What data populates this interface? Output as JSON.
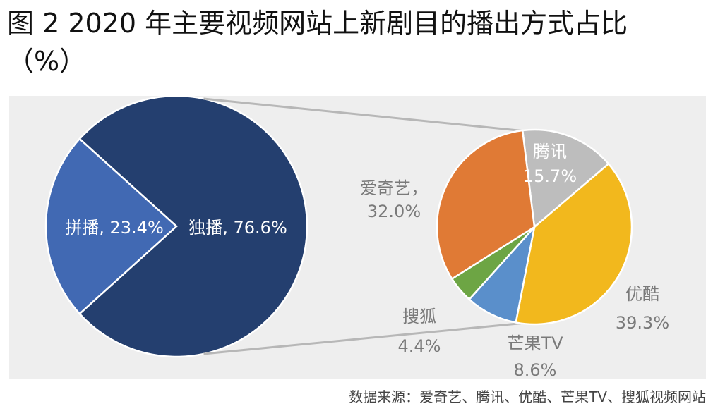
{
  "title": {
    "line1": "图 2 2020 年主要视频网站上新剧目的播出方式占比",
    "line2": "（%）"
  },
  "source": "数据来源：爱奇艺、腾讯、优酷、芒果TV、搜狐视频网站",
  "colors": {
    "background_panel": "#eeeeee",
    "exclusive": "#243f6f",
    "joint": "#4169b3",
    "tencent": "#bdbdbd",
    "youku": "#f2b81d",
    "mango": "#5a8fcb",
    "sohu": "#6da544",
    "iqiyi": "#e07a35",
    "connector": "#b7b7b7",
    "label_gray": "#7a7a7a",
    "label_white": "#ffffff"
  },
  "chart_data": [
    {
      "type": "pie",
      "slices": [
        {
          "label": "独播",
          "value": 76.6,
          "text": "独播, 76.6%"
        },
        {
          "label": "拼播",
          "value": 23.4,
          "text": "拼播, 23.4%"
        }
      ]
    },
    {
      "type": "pie",
      "slices": [
        {
          "label": "腾讯",
          "value": 15.7,
          "text_name": "腾讯",
          "text_value": "15.7%"
        },
        {
          "label": "优酷",
          "value": 39.3,
          "text_name": "优酷",
          "text_value": "39.3%"
        },
        {
          "label": "芒果TV",
          "value": 8.6,
          "text_name": "芒果TV",
          "text_value": "8.6%"
        },
        {
          "label": "搜狐",
          "value": 4.4,
          "text_name": "搜狐",
          "text_value": "4.4%"
        },
        {
          "label": "爱奇艺",
          "value": 32.0,
          "text_name": "爱奇艺，",
          "text_value": "32.0%"
        }
      ]
    }
  ]
}
